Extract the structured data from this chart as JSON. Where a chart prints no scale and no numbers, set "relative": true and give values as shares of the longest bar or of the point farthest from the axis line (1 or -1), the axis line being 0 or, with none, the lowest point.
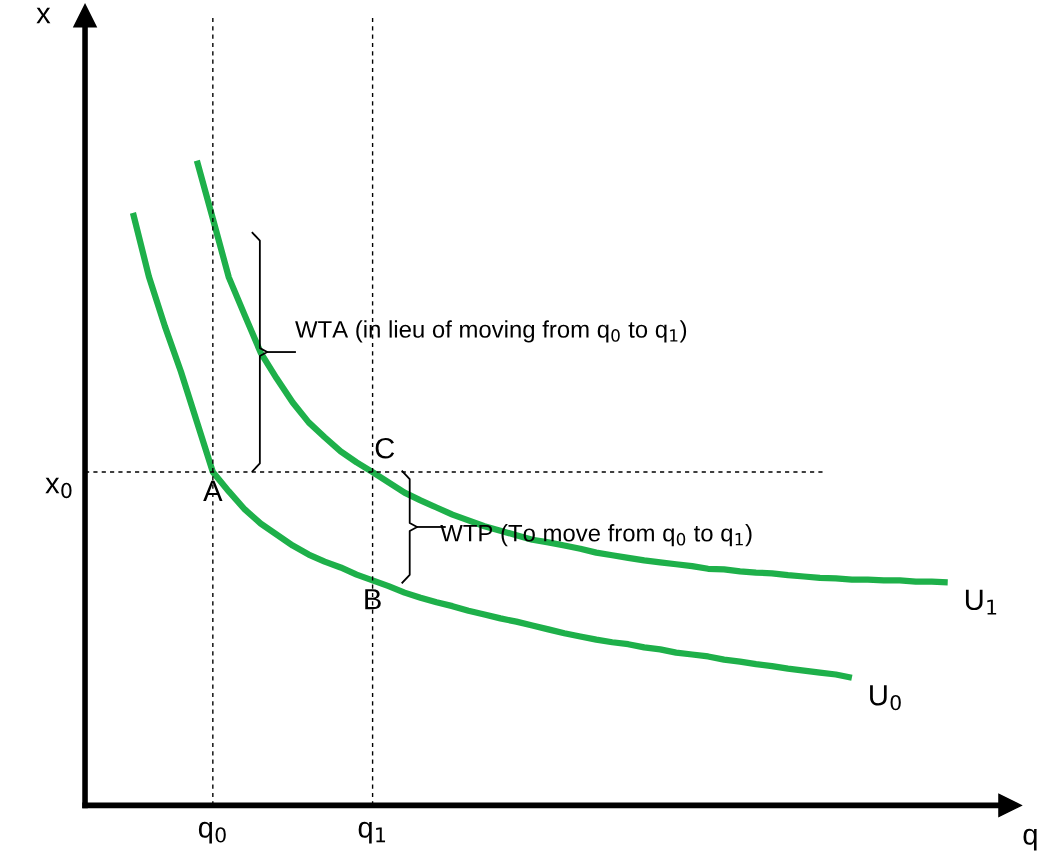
{
  "chart_data": {
    "type": "line",
    "relative": true,
    "xlabel": "q",
    "ylabel": "x",
    "grid": false,
    "legend": false,
    "marker": "none",
    "line_style": "solid",
    "categories": [
      null,
      null,
      null,
      null,
      null,
      null,
      null,
      null,
      "q$_{0}$",
      null,
      null,
      null,
      null,
      null,
      null,
      null,
      null,
      null,
      "q$_{1}$",
      null,
      null,
      null,
      null,
      null,
      null,
      null,
      null,
      null,
      null,
      null,
      null,
      null,
      null,
      null,
      null,
      null,
      null,
      null,
      null,
      null,
      null,
      null,
      null,
      null,
      null,
      null,
      null,
      null,
      null,
      null,
      null,
      null,
      null,
      null,
      null,
      null,
      null,
      null
    ],
    "series": [
      {
        "name": "U$_{1}$",
        "color": "#1eb04a",
        "values": [
          null,
          null,
          null,
          null,
          null,
          null,
          null,
          1.0,
          0.91,
          0.819,
          0.76,
          0.702,
          0.662,
          0.625,
          0.594,
          0.571,
          0.549,
          0.532,
          0.517,
          0.501,
          0.485,
          0.473,
          0.462,
          0.451,
          0.442,
          0.433,
          0.426,
          0.419,
          0.412,
          0.408,
          0.403,
          0.398,
          0.392,
          0.388,
          0.384,
          0.38,
          0.377,
          0.374,
          0.371,
          0.367,
          0.366,
          0.363,
          0.361,
          0.36,
          0.357,
          0.355,
          0.353,
          0.352,
          0.35,
          0.35,
          0.349,
          0.349,
          0.347,
          0.347,
          0.346,
          null,
          null,
          null
        ]
      },
      {
        "name": "U$_{0}$",
        "color": "#1eb04a",
        "values": [
          null,
          null,
          null,
          0.919,
          0.82,
          0.743,
          0.673,
          0.595,
          0.517,
          0.487,
          0.459,
          0.437,
          0.42,
          0.403,
          0.389,
          0.378,
          0.369,
          0.358,
          0.349,
          0.34,
          0.33,
          0.322,
          0.315,
          0.309,
          0.302,
          0.296,
          0.29,
          0.285,
          0.279,
          0.273,
          0.267,
          0.262,
          0.257,
          0.253,
          0.25,
          0.245,
          0.242,
          0.237,
          0.234,
          0.231,
          0.226,
          0.223,
          0.219,
          0.216,
          0.212,
          0.209,
          0.206,
          0.203,
          0.198,
          null,
          null,
          null,
          null,
          null,
          null,
          null,
          null,
          null
        ]
      }
    ],
    "ref_lines": [
      {
        "axis": "x",
        "value": "q$_{0}$",
        "line_style": "dashed",
        "color": "#000000"
      },
      {
        "axis": "x",
        "value": "q$_{1}$",
        "line_style": "dashed",
        "color": "#000000"
      },
      {
        "axis": "y",
        "value": 0.517,
        "label": "x$_{0}$",
        "line_style": "dashed",
        "color": "#000000"
      }
    ],
    "annotations": [
      {
        "text": "A",
        "x": "q$_{0}$",
        "y": 0.517
      },
      {
        "text": "B",
        "x": "q$_{1}$",
        "y": 0.349
      },
      {
        "text": "C",
        "x": "q$_{1}$",
        "y": 0.517
      },
      "WTA (in lieu of moving from q$_{0}$ to q$_{1}$)",
      "WTP (To move from q$_{0}$ to q$_{1}$)"
    ]
  }
}
